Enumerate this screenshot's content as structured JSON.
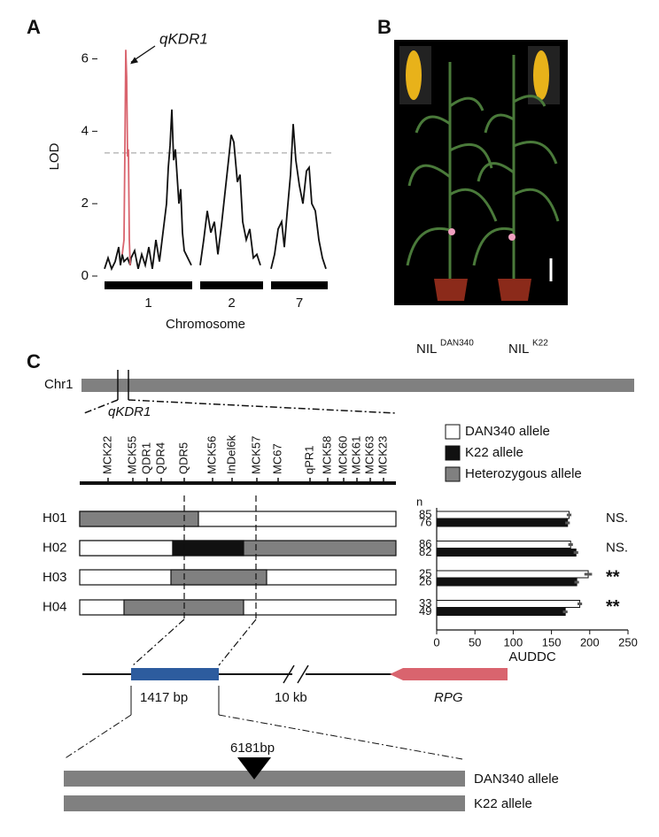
{
  "panels": {
    "a": "A",
    "b": "B",
    "c": "C"
  },
  "chart_data": [
    {
      "type": "line",
      "y_label": "LOD",
      "x_label": "Chromosome",
      "peak_label": "qKDR1",
      "xlim": [
        0,
        252
      ],
      "ylim": [
        0,
        6.6
      ],
      "yticks": [
        0,
        2,
        4,
        6
      ],
      "threshold": 3.4,
      "chromosomes": [
        {
          "label": "1",
          "start": 0,
          "end": 99
        },
        {
          "label": "2",
          "start": 108,
          "end": 179
        },
        {
          "label": "7",
          "start": 188,
          "end": 252
        }
      ],
      "series": [
        {
          "color": "#111111",
          "x": [
            0,
            4,
            8,
            12,
            16,
            18,
            20,
            22,
            26,
            29,
            30,
            34,
            38,
            42,
            46,
            50,
            54,
            58,
            62,
            66,
            70,
            72,
            74,
            76,
            78,
            80,
            84,
            86,
            88,
            90,
            94,
            98,
            103,
            108,
            112,
            116,
            120,
            124,
            128,
            132,
            136,
            140,
            143,
            146,
            150,
            153,
            156,
            160,
            164,
            168,
            172,
            176,
            182,
            188,
            192,
            196,
            200,
            203,
            206,
            210,
            213,
            216,
            220,
            224,
            228,
            231,
            234,
            238,
            242,
            246,
            250
          ],
          "values": [
            0.2,
            0.5,
            0.2,
            0.4,
            0.8,
            0.3,
            0.6,
            0.4,
            0.5,
            0.3,
            0.5,
            0.7,
            0.2,
            0.6,
            0.3,
            0.8,
            0.2,
            1.0,
            0.4,
            1.2,
            2.0,
            3.0,
            3.6,
            4.6,
            3.2,
            3.5,
            2.0,
            2.4,
            1.2,
            0.7,
            0.5,
            0.3,
            null,
            0.3,
            1.0,
            1.8,
            1.2,
            1.5,
            0.6,
            1.4,
            2.3,
            3.2,
            3.9,
            3.7,
            2.6,
            2.8,
            1.5,
            1.0,
            1.3,
            0.5,
            0.6,
            0.3,
            null,
            0.2,
            0.6,
            1.3,
            1.5,
            0.8,
            1.7,
            2.8,
            4.2,
            3.2,
            2.5,
            2.0,
            2.9,
            3.0,
            2.0,
            1.8,
            1.0,
            0.5,
            0.2
          ]
        },
        {
          "color": "#d9646e",
          "x": [
            20,
            22,
            23,
            24,
            25,
            26,
            27,
            28,
            29
          ],
          "values": [
            0.6,
            1.0,
            3.5,
            6.25,
            5.5,
            3.3,
            3.5,
            1.0,
            0.3
          ]
        }
      ]
    },
    {
      "type": "bar",
      "orientation": "horizontal",
      "x_label": "AUDDC",
      "n_label": "n",
      "categories": [
        "H01",
        "H02",
        "H03",
        "H04"
      ],
      "xlim": [
        0,
        250
      ],
      "xticks": [
        0,
        50,
        100,
        150,
        200,
        250
      ],
      "series": [
        {
          "color": "#ffffff",
          "values": [
            173,
            175,
            198,
            187
          ],
          "errors": [
            3,
            3,
            5,
            3
          ],
          "n": [
            "85",
            "86",
            "25",
            "33"
          ]
        },
        {
          "color": "#111111",
          "values": [
            171,
            182,
            183,
            168
          ],
          "errors": [
            3,
            3,
            3,
            3
          ],
          "n": [
            "76",
            "82",
            "26",
            "49"
          ]
        }
      ],
      "significance": [
        "NS.",
        "NS.",
        "**",
        "**"
      ]
    }
  ],
  "panel_b": {
    "left": {
      "name": "NIL",
      "sup": "DAN340"
    },
    "right": {
      "name": "NIL",
      "sup": "K22"
    }
  },
  "panel_c": {
    "chromosome": "Chr1",
    "locus": "qKDR1",
    "markers": [
      "MCK22",
      "MCK55",
      "QDR1",
      "QDR4",
      "QDR5",
      "MCK56",
      "InDel6k",
      "MCK57",
      "MC67",
      "qPR1",
      "MCK58",
      "MCK60",
      "MCK61",
      "MCK63",
      "MCK23"
    ],
    "legend": [
      {
        "name": "DAN340 allele",
        "color": "#ffffff"
      },
      {
        "name": "K22 allele",
        "color": "#111111"
      },
      {
        "name": "Heterozygous allele",
        "color": "#808080"
      }
    ],
    "gene": {
      "fragment": "1417 bp",
      "gap": "10 kb",
      "name": "RPG"
    },
    "insertion": "6181bp",
    "alleles": [
      "DAN340 allele",
      "K22 allele"
    ]
  }
}
